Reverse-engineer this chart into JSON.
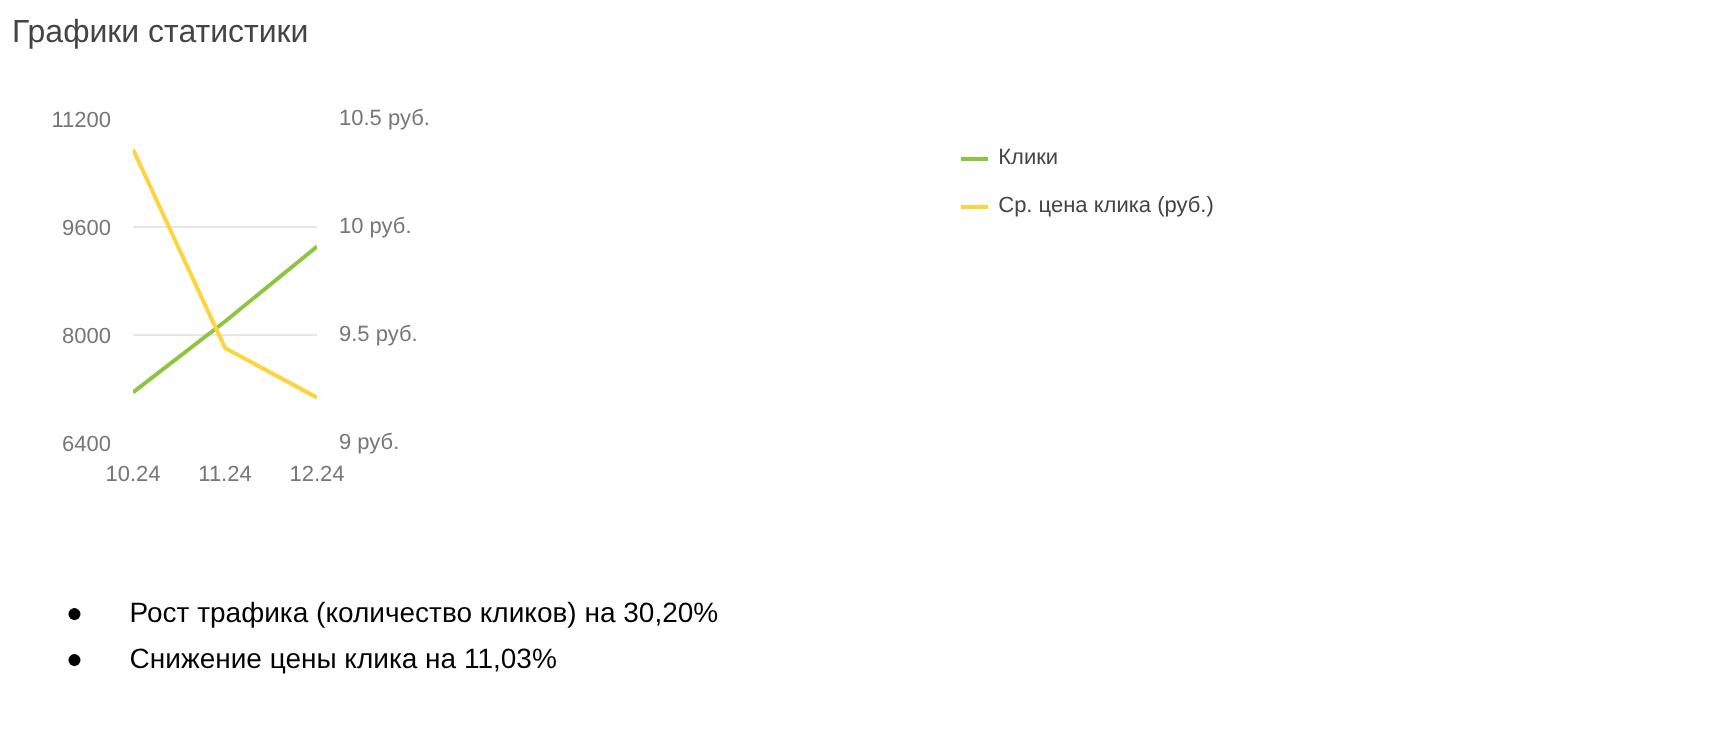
{
  "chart_data": {
    "type": "line",
    "title": "Графики статистики",
    "categories": [
      "10.24",
      "11.24",
      "12.24"
    ],
    "series": [
      {
        "name": "Клики",
        "color": "#8cc63f",
        "values": [
          7150,
          8200,
          9310
        ]
      },
      {
        "name": "Ср. цена клика (руб.)",
        "color": "#ffd43b",
        "values": [
          10.36,
          9.44,
          9.21
        ],
        "axis": "y2"
      }
    ],
    "ylim": [
      6400,
      11200
    ],
    "yticks": [
      6400,
      8000,
      9600,
      11200
    ],
    "y2lim": [
      9,
      10.5
    ],
    "y2ticks": [
      {
        "value": 9,
        "label": "9 руб."
      },
      {
        "value": 9.5,
        "label": "9.5 руб."
      },
      {
        "value": 10,
        "label": "10 руб."
      },
      {
        "value": 10.5,
        "label": "10.5 руб."
      }
    ],
    "grid": "y",
    "legend": "top right",
    "marker": "none",
    "line_style": "solid",
    "annotations": [
      "●      Рост трафика (количество кликов) на 30,20%",
      "●      Снижение цены клика на 11,03%"
    ]
  }
}
